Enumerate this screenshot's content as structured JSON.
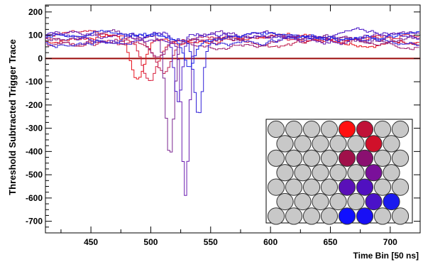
{
  "chart_data": {
    "type": "line",
    "xlabel": "Time Bin [50 ns]",
    "ylabel": "Threshold Subtracted Trigger Trace",
    "xlim": [
      412,
      725
    ],
    "ylim": [
      -750,
      230
    ],
    "x_ticks": [
      450,
      500,
      550,
      600,
      650,
      700
    ],
    "y_ticks": [
      200,
      100,
      0,
      -100,
      -200,
      -300,
      -400,
      -500,
      -600,
      -700
    ],
    "zero_line": 0,
    "grid": false,
    "series_style": "step",
    "series": [
      {
        "color": "#e8141e",
        "dip_center": 488,
        "dip_min": -95,
        "dip_width": 10
      },
      {
        "color": "#d81c3a",
        "dip_center": 498,
        "dip_min": -75,
        "dip_width": 11
      },
      {
        "color": "#c02050",
        "dip_center": 510,
        "dip_min": -60,
        "dip_width": 10
      },
      {
        "color": "#a02070",
        "dip_center": 505,
        "dip_min": -25,
        "dip_width": 12
      },
      {
        "color": "#7a2590",
        "dip_center": 515,
        "dip_min": -415,
        "dip_width": 6
      },
      {
        "color": "#6a1cb0",
        "dip_center": 528,
        "dip_min": -570,
        "dip_width": 5
      },
      {
        "color": "#4a18c8",
        "dip_center": 522,
        "dip_min": -210,
        "dip_width": 6
      },
      {
        "color": "#3020d8",
        "dip_center": 539,
        "dip_min": -240,
        "dip_width": 6
      },
      {
        "color": "#1a20e8",
        "dip_center": 532,
        "dip_min": -10,
        "dip_width": 8
      }
    ],
    "inset": {
      "rows": [
        [
          "#c8c8c8",
          "#c8c8c8",
          "#c8c8c8",
          "#c8c8c8",
          "#ff1010",
          "#c01238",
          "#c8c8c8",
          "#c8c8c8"
        ],
        [
          "#c8c8c8",
          "#c8c8c8",
          "#c8c8c8",
          "#c8c8c8",
          "#c8c8c8",
          "#d0102a",
          "#c8c8c8"
        ],
        [
          "#c8c8c8",
          "#c8c8c8",
          "#c8c8c8",
          "#c8c8c8",
          "#a0104a",
          "#8a1070",
          "#c8c8c8",
          "#c8c8c8"
        ],
        [
          "#c8c8c8",
          "#c8c8c8",
          "#c8c8c8",
          "#c8c8c8",
          "#c8c8c8",
          "#7a109a",
          "#c8c8c8"
        ],
        [
          "#c8c8c8",
          "#c8c8c8",
          "#c8c8c8",
          "#c8c8c8",
          "#5a10b8",
          "#5010c0",
          "#c8c8c8",
          "#c8c8c8"
        ],
        [
          "#c8c8c8",
          "#c8c8c8",
          "#c8c8c8",
          "#c8c8c8",
          "#c8c8c8",
          "#4a12c8",
          "#1a1aee"
        ],
        [
          "#c8c8c8",
          "#c8c8c8",
          "#c8c8c8",
          "#c8c8c8",
          "#1010ff",
          "#1810f4",
          "#c8c8c8",
          "#c8c8c8"
        ]
      ]
    }
  }
}
